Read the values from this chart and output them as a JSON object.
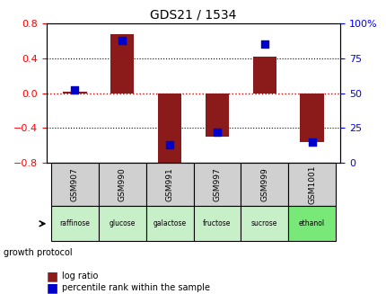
{
  "title": "GDS21 / 1534",
  "samples": [
    "GSM907",
    "GSM990",
    "GSM991",
    "GSM997",
    "GSM999",
    "GSM1001"
  ],
  "conditions": [
    "raffinose",
    "glucose",
    "galactose",
    "fructose",
    "sucrose",
    "ethanol"
  ],
  "log_ratios": [
    0.02,
    0.68,
    -0.83,
    -0.5,
    0.42,
    -0.56
  ],
  "percentile_ranks": [
    52,
    88,
    13,
    22,
    85,
    15
  ],
  "bar_color": "#8B1A1A",
  "dot_color": "#0000CC",
  "left_ylim": [
    -0.8,
    0.8
  ],
  "right_ylim": [
    0,
    100
  ],
  "left_yticks": [
    -0.8,
    -0.4,
    0.0,
    0.4,
    0.8
  ],
  "right_yticks": [
    0,
    25,
    50,
    75,
    100
  ],
  "right_yticklabels": [
    "0",
    "25",
    "50",
    "75",
    "100%"
  ],
  "hline_color": "#CC0000",
  "hline_style": ":",
  "grid_color": "black",
  "grid_style": ":",
  "condition_colors": [
    "#b8f0b8",
    "#b8f0b8",
    "#b8f0b8",
    "#b8f0b8",
    "#b8f0b8",
    "#90EE90"
  ],
  "sample_bg_color": "#d0d0d0",
  "bar_width": 0.5
}
